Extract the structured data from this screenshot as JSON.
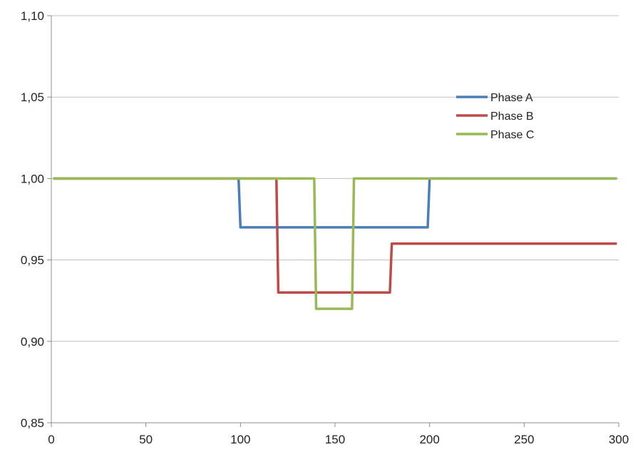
{
  "chart_data": {
    "type": "line",
    "title": "",
    "xlabel": "",
    "ylabel": "",
    "xlim": [
      0,
      300
    ],
    "ylim": [
      0.85,
      1.1
    ],
    "x_ticks": [
      0,
      50,
      100,
      150,
      200,
      250,
      300
    ],
    "y_ticks": [
      0.85,
      0.9,
      0.95,
      1.0,
      1.05,
      1.1
    ],
    "x_tick_labels": [
      "0",
      "50",
      "100",
      "150",
      "200",
      "250",
      "300"
    ],
    "y_tick_labels": [
      "0,85",
      "0,90",
      "0,95",
      "1,00",
      "1,05",
      "1,10"
    ],
    "grid": "horizontal",
    "legend_position": "top-right",
    "series": [
      {
        "name": "Phase A",
        "color": "#4a7ebb",
        "x": [
          1,
          99,
          100,
          199,
          200,
          299
        ],
        "y": [
          1.0,
          1.0,
          0.97,
          0.97,
          1.0,
          1.0
        ]
      },
      {
        "name": "Phase B",
        "color": "#be4b48",
        "x": [
          1,
          119,
          120,
          179,
          180,
          299
        ],
        "y": [
          1.0,
          1.0,
          0.93,
          0.93,
          0.96,
          0.96
        ]
      },
      {
        "name": "Phase C",
        "color": "#98b954",
        "x": [
          1,
          139,
          140,
          159,
          160,
          299
        ],
        "y": [
          1.0,
          1.0,
          0.92,
          0.92,
          1.0,
          1.0
        ]
      }
    ]
  }
}
